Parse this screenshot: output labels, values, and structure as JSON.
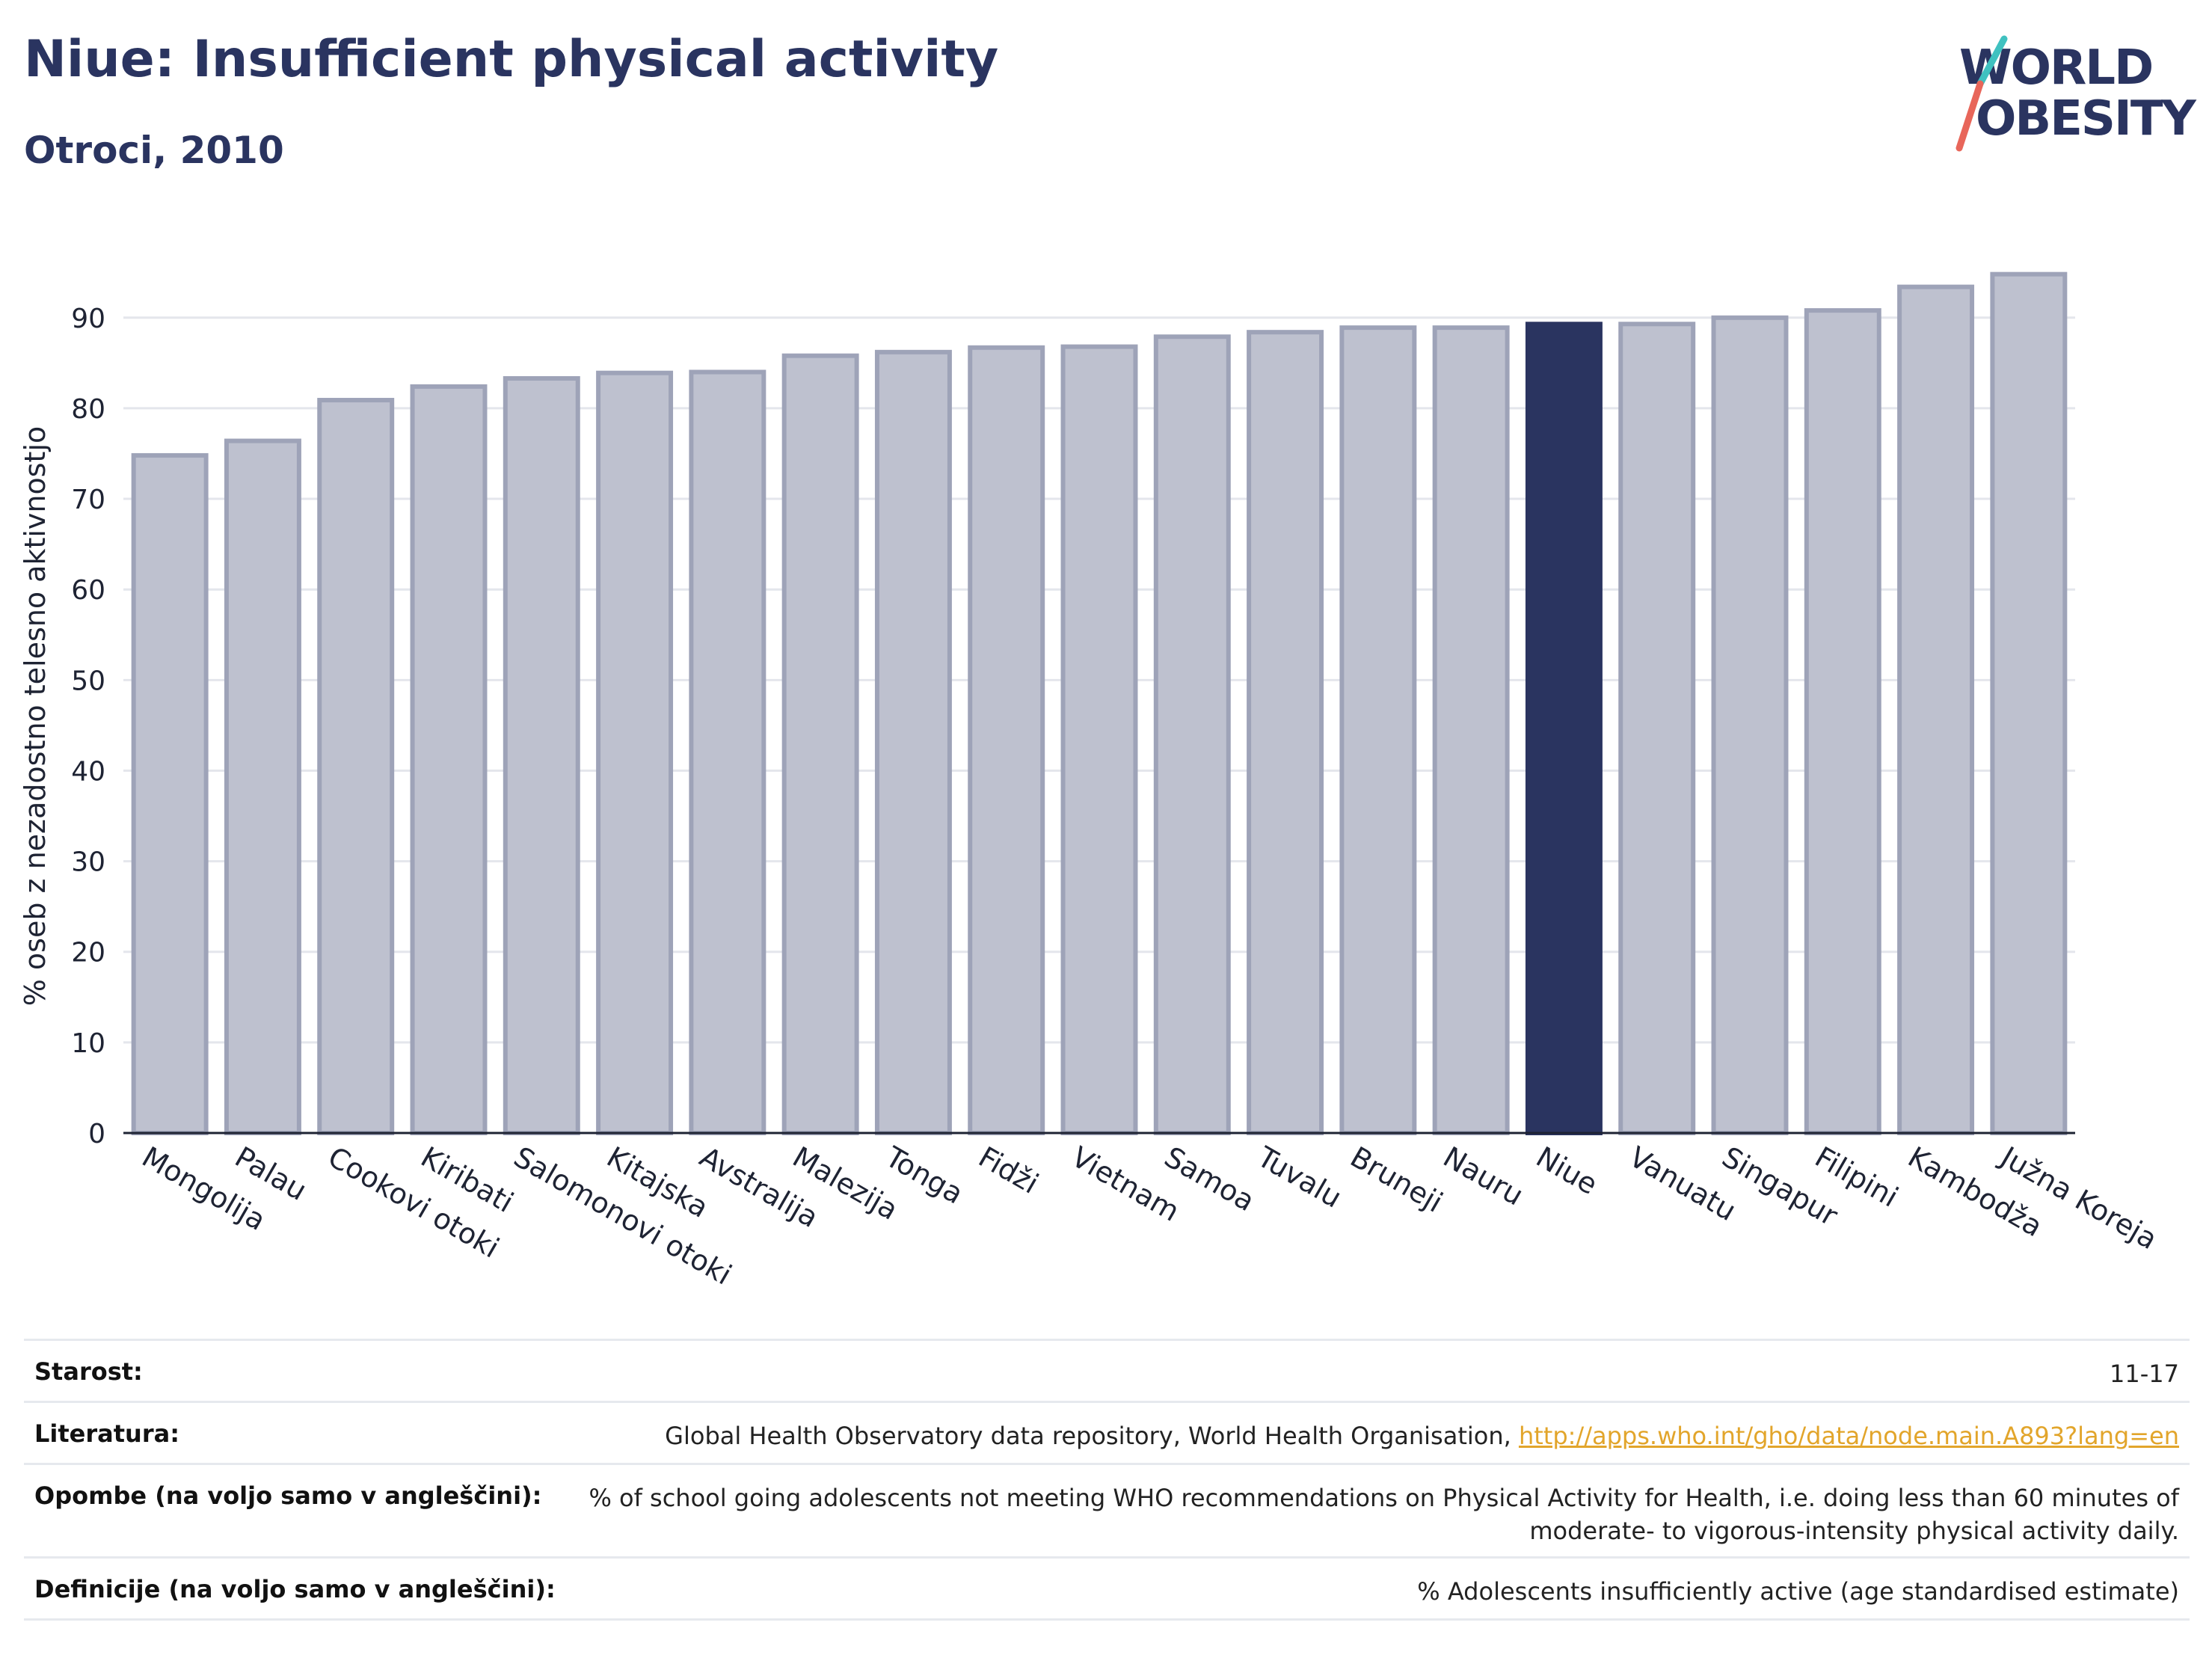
{
  "header": {
    "title": "Niue: Insufficient physical activity",
    "subtitle": "Otroci, 2010"
  },
  "logo": {
    "line1": "WORLD",
    "line2": "OBESITY"
  },
  "colors": {
    "highlight": "#2a3460",
    "bar": "#bec1cf",
    "bar_stroke": "#9ea3b8"
  },
  "chart_data": {
    "type": "bar",
    "ylabel": "% oseb z nezadostno telesno aktivnostjo",
    "ylim": [
      0,
      97
    ],
    "yticks": [
      0,
      10,
      20,
      30,
      40,
      50,
      60,
      70,
      80,
      90
    ],
    "grid": true,
    "highlight": "Niue",
    "categories": [
      "Mongolija",
      "Palau",
      "Cookovi otoki",
      "Kiribati",
      "Salomonovi otoki",
      "Kitajska",
      "Avstralija",
      "Malezija",
      "Tonga",
      "Fidži",
      "Vietnam",
      "Samoa",
      "Tuvalu",
      "Bruneji",
      "Nauru",
      "Niue",
      "Vanuatu",
      "Singapur",
      "Filipini",
      "Kambodža",
      "Južna Koreja"
    ],
    "values": [
      74.8,
      76.4,
      80.9,
      82.4,
      83.3,
      83.9,
      84.0,
      85.8,
      86.2,
      86.7,
      86.8,
      87.9,
      88.4,
      88.9,
      88.9,
      89.3,
      89.3,
      90.0,
      90.8,
      93.4,
      94.8
    ]
  },
  "meta": {
    "age_label": "Starost:",
    "age_value": "11-17",
    "lit_label": "Literatura:",
    "lit_value": "Global Health Observatory data repository, World Health Organisation,",
    "lit_link": "http://apps.who.int/gho/data/node.main.A893?lang=en",
    "notes_label": "Opombe (na voljo samo v angleščini):",
    "notes_value_1": "% of school going adolescents not meeting WHO recommendations on Physical Activity for Health, i.e. doing less than 60 minutes of",
    "notes_value_2": "moderate- to vigorous-intensity physical activity daily.",
    "def_label": "Definicije (na voljo samo v angleščini):",
    "def_value": "% Adolescents insufficiently active (age standardised estimate)"
  }
}
